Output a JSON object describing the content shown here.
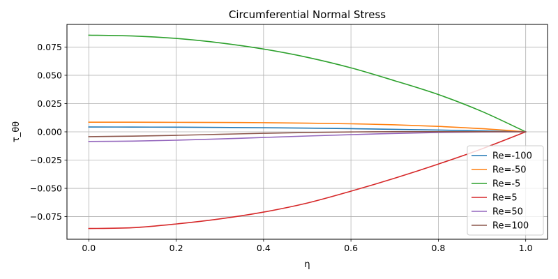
{
  "chart_data": {
    "type": "line",
    "title": "Circumferential Normal Stress",
    "xlabel": "η",
    "ylabel": "τ_θθ",
    "xlim": [
      -0.05,
      1.05
    ],
    "ylim": [
      -0.095,
      0.095
    ],
    "xticks": [
      0.0,
      0.2,
      0.4,
      0.6,
      0.8,
      1.0
    ],
    "xtick_labels": [
      "0.0",
      "0.2",
      "0.4",
      "0.6",
      "0.8",
      "1.0"
    ],
    "yticks": [
      -0.075,
      -0.05,
      -0.025,
      0.0,
      0.025,
      0.05,
      0.075
    ],
    "ytick_labels": [
      "−0.075",
      "−0.050",
      "−0.025",
      "0.000",
      "0.025",
      "0.050",
      "0.075"
    ],
    "grid": true,
    "legend_position": "lower-right",
    "x": [
      0.0,
      0.1,
      0.2,
      0.3,
      0.4,
      0.5,
      0.6,
      0.7,
      0.8,
      0.9,
      1.0
    ],
    "series": [
      {
        "name": "Re=-100",
        "color": "#1f77b4",
        "values": [
          0.0043,
          0.0042,
          0.0041,
          0.0039,
          0.0036,
          0.0033,
          0.0028,
          0.0022,
          0.0016,
          0.0008,
          0.0
        ]
      },
      {
        "name": "Re=-50",
        "color": "#ff7f0e",
        "values": [
          0.0085,
          0.0085,
          0.0084,
          0.0083,
          0.0081,
          0.0077,
          0.0071,
          0.0062,
          0.0048,
          0.0028,
          0.0
        ]
      },
      {
        "name": "Re=-5",
        "color": "#2ca02c",
        "values": [
          0.0855,
          0.0848,
          0.0826,
          0.0787,
          0.0732,
          0.0659,
          0.0566,
          0.0452,
          0.033,
          0.018,
          0.0
        ]
      },
      {
        "name": "Re=5",
        "color": "#d62728",
        "values": [
          -0.0855,
          -0.0848,
          -0.0815,
          -0.077,
          -0.071,
          -0.063,
          -0.0525,
          -0.041,
          -0.0285,
          -0.015,
          0.0
        ]
      },
      {
        "name": "Re=50",
        "color": "#9467bd",
        "values": [
          -0.0085,
          -0.0082,
          -0.0074,
          -0.0063,
          -0.005,
          -0.0037,
          -0.0025,
          -0.0014,
          -0.0006,
          -0.0001,
          0.0
        ]
      },
      {
        "name": "Re=100",
        "color": "#8c564b",
        "values": [
          -0.0043,
          -0.0038,
          -0.0031,
          -0.0022,
          -0.0013,
          -0.0006,
          -0.0001,
          0.0001,
          0.0001,
          0.0001,
          0.0
        ]
      }
    ]
  }
}
